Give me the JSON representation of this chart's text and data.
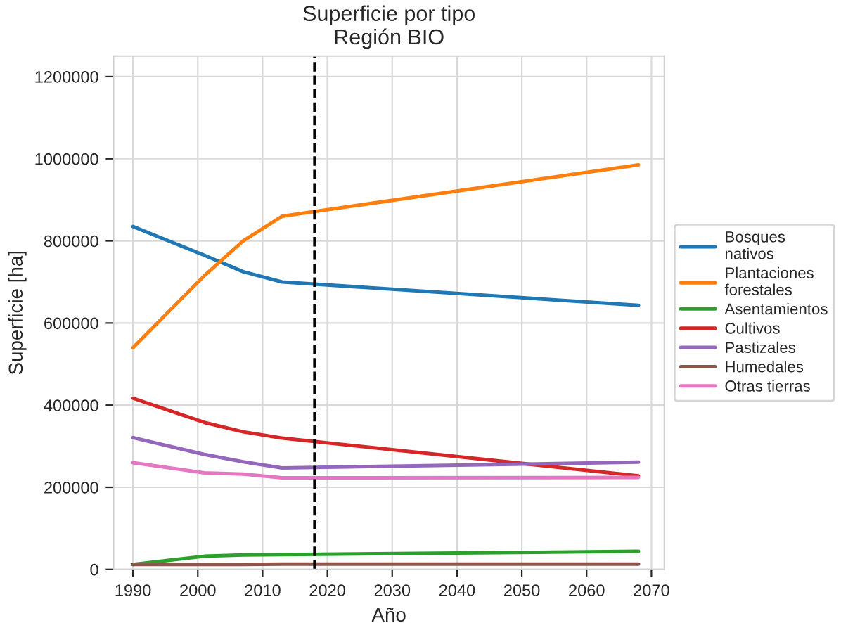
{
  "chart_data": {
    "type": "line",
    "title": "Superficie por tipo\nRegión BIO",
    "xlabel": "Año",
    "ylabel": "Superficie [ha]",
    "x": [
      1990,
      2001,
      2007,
      2013,
      2068
    ],
    "series": [
      {
        "name": "Bosques\nnativos",
        "color": "#1f77b4",
        "values": [
          835000,
          765000,
          725000,
          700000,
          643000
        ]
      },
      {
        "name": "Plantaciones\nforestales",
        "color": "#ff7f0e",
        "values": [
          540000,
          715000,
          800000,
          860000,
          985000
        ]
      },
      {
        "name": "Asentamientos",
        "color": "#2ca02c",
        "values": [
          12000,
          32000,
          35000,
          36000,
          44000
        ]
      },
      {
        "name": "Cultivos",
        "color": "#d62728",
        "values": [
          417000,
          358000,
          335000,
          320000,
          228000
        ]
      },
      {
        "name": "Pastizales",
        "color": "#9467bd",
        "values": [
          321000,
          280000,
          262000,
          247000,
          261000
        ]
      },
      {
        "name": "Humedales",
        "color": "#8c564b",
        "values": [
          12000,
          12000,
          12000,
          13000,
          13000
        ]
      },
      {
        "name": "Otras tierras",
        "color": "#e377c2",
        "values": [
          260000,
          235000,
          232000,
          223000,
          224000
        ]
      }
    ],
    "ref_lines": [
      {
        "axis": "x",
        "value": 2018,
        "color": "#000000",
        "line_style": "dashed"
      }
    ],
    "xlim": [
      1987,
      2072
    ],
    "ylim": [
      0,
      1250000
    ],
    "xticks": [
      1990,
      2000,
      2010,
      2020,
      2030,
      2040,
      2050,
      2060,
      2070
    ],
    "yticks": [
      0,
      200000,
      400000,
      600000,
      800000,
      1000000,
      1200000
    ],
    "grid": true,
    "legend": "right"
  }
}
